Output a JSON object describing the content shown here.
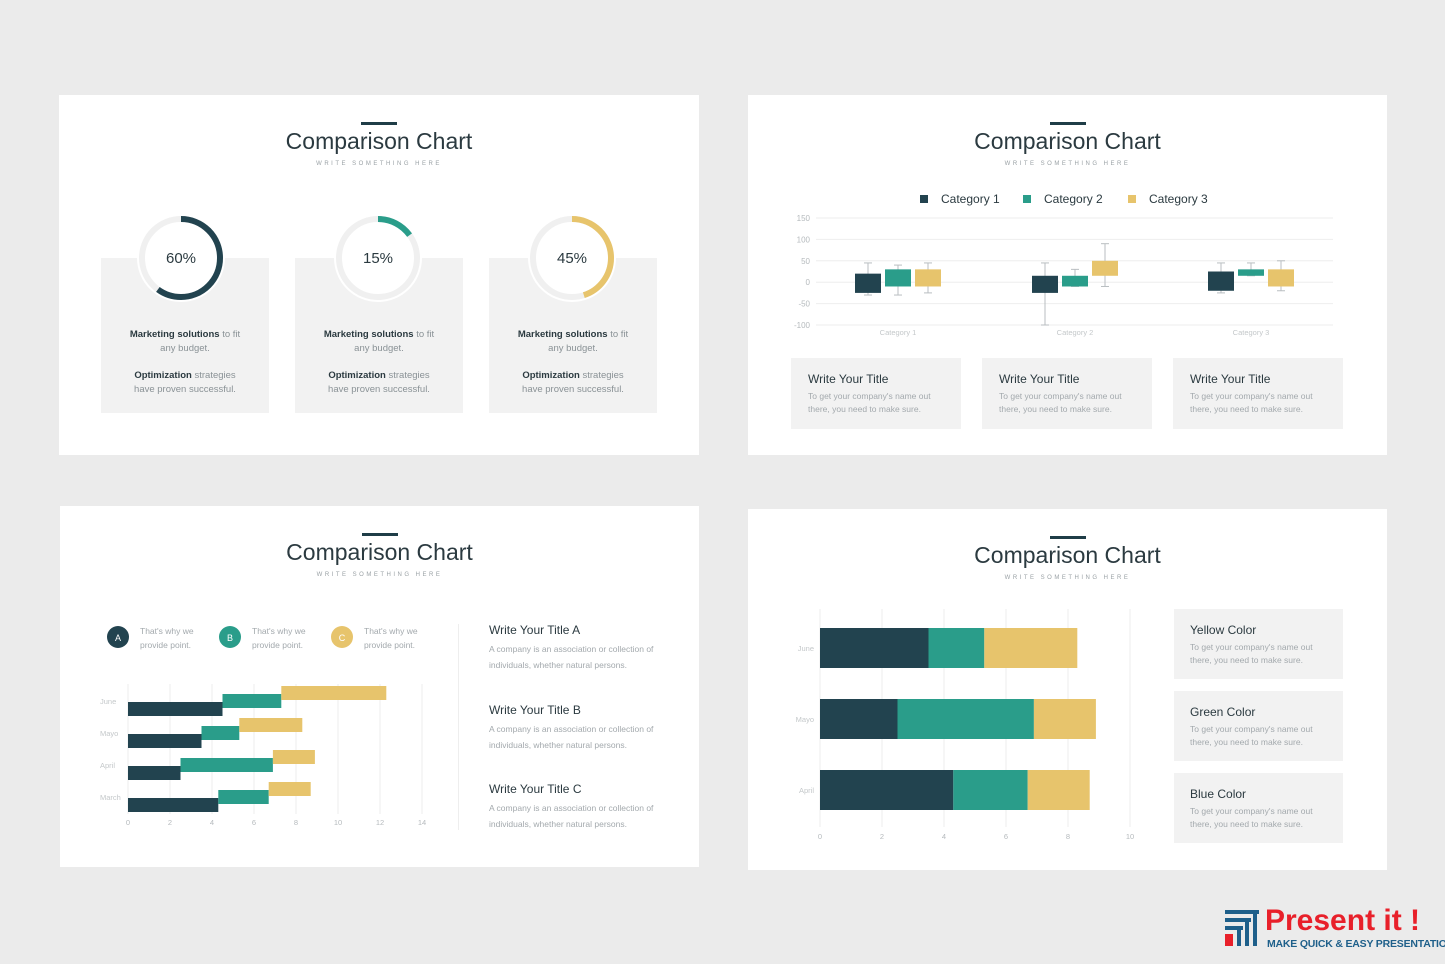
{
  "colors": {
    "navy": "#22434f",
    "teal": "#2a9d8a",
    "yellow": "#e7c46c",
    "track": "#f0f0f0",
    "grid": "#eeeeee",
    "tick": "#b5babd"
  },
  "slides": [
    {
      "title": "Comparison Chart",
      "subtitle": "WRITE SOMETHING HERE",
      "cards": [
        {
          "percent_label": "60%",
          "bold1": "Marketing solutions",
          "rest1a": " to fit",
          "rest1b": "any budget.",
          "bold2": "Optimization",
          "rest2a": " strategies",
          "rest2b": "have proven successful."
        },
        {
          "percent_label": "15%",
          "bold1": "Marketing solutions",
          "rest1a": " to fit",
          "rest1b": "any budget.",
          "bold2": "Optimization",
          "rest2a": " strategies",
          "rest2b": "have proven successful."
        },
        {
          "percent_label": "45%",
          "bold1": "Marketing solutions",
          "rest1a": " to fit",
          "rest1b": "any budget.",
          "bold2": "Optimization",
          "rest2a": " strategies",
          "rest2b": "have proven successful."
        }
      ]
    },
    {
      "title": "Comparison Chart",
      "subtitle": "WRITE SOMETHING HERE",
      "legend": [
        "Category 1",
        "Category 2",
        "Category 3"
      ],
      "cards": [
        {
          "title": "Write Your Title",
          "desc": "To get your company's name out there, you need to make sure."
        },
        {
          "title": "Write Your Title",
          "desc": "To get your company's name out there, you need to make sure."
        },
        {
          "title": "Write Your Title",
          "desc": "To get your company's name out there, you need to make sure."
        }
      ]
    },
    {
      "title": "Comparison Chart",
      "subtitle": "WRITE SOMETHING HERE",
      "badges": [
        {
          "letter": "A",
          "text1": "That's why we",
          "text2": "provide point."
        },
        {
          "letter": "B",
          "text1": "That's why we",
          "text2": "provide point."
        },
        {
          "letter": "C",
          "text1": "That's why we",
          "text2": "provide point."
        }
      ],
      "side": [
        {
          "title": "Write Your Title A",
          "desc": "A company is an association or collection of individuals, whether natural persons."
        },
        {
          "title": "Write Your Title B",
          "desc": "A company is an association or collection of individuals, whether natural persons."
        },
        {
          "title": "Write Your Title C",
          "desc": "A company is an association or collection of individuals, whether natural persons."
        }
      ]
    },
    {
      "title": "Comparison Chart",
      "subtitle": "WRITE SOMETHING HERE",
      "cards": [
        {
          "title": "Yellow Color",
          "desc": "To get your company's name out there, you need to make sure."
        },
        {
          "title": "Green Color",
          "desc": "To get your company's name out there, you need to make sure."
        },
        {
          "title": "Blue Color",
          "desc": "To get your company's name out there, you need to make sure."
        }
      ]
    }
  ],
  "chart_data": [
    {
      "type": "pie",
      "subtype": "donut",
      "values": [
        60,
        15,
        45
      ],
      "labels": [
        "60%",
        "15%",
        "45%"
      ],
      "colors": [
        "#22434f",
        "#2a9d8a",
        "#e7c46c"
      ]
    },
    {
      "type": "bar",
      "subtype": "floating-box-with-whiskers",
      "categories": [
        "Category 1",
        "Category 2",
        "Category 3"
      ],
      "yticks": [
        "150",
        "100",
        "50",
        "0",
        "-50",
        "-100"
      ],
      "ylim": [
        -100,
        150
      ],
      "legend_position": "top",
      "series": [
        {
          "name": "Category 1",
          "low": [
            -25,
            -25,
            -20
          ],
          "high": [
            20,
            15,
            25
          ],
          "whisker_low": [
            -30,
            -100,
            -25
          ],
          "whisker_high": [
            45,
            45,
            45
          ]
        },
        {
          "name": "Category 2",
          "low": [
            -10,
            -10,
            15
          ],
          "high": [
            30,
            15,
            30
          ],
          "whisker_low": [
            -30,
            -10,
            15
          ],
          "whisker_high": [
            40,
            30,
            45
          ]
        },
        {
          "name": "Category 3",
          "low": [
            -10,
            15,
            -10
          ],
          "high": [
            30,
            50,
            30
          ],
          "whisker_low": [
            -25,
            -10,
            -20
          ],
          "whisker_high": [
            45,
            90,
            50
          ]
        }
      ]
    },
    {
      "type": "bar",
      "subtype": "horizontal-gantt",
      "categories": [
        "June",
        "Mayo",
        "April",
        "March"
      ],
      "xticks": [
        "0",
        "2",
        "4",
        "6",
        "8",
        "10",
        "12",
        "14"
      ],
      "xlim": [
        0,
        14
      ],
      "series": [
        {
          "name": "A",
          "start": [
            0,
            0,
            0,
            0
          ],
          "end": [
            4.5,
            3.5,
            2.5,
            4.3
          ]
        },
        {
          "name": "B",
          "start": [
            4.5,
            3.5,
            2.5,
            4.3
          ],
          "end": [
            7.3,
            5.3,
            6.9,
            6.7
          ]
        },
        {
          "name": "C",
          "start": [
            7.3,
            5.3,
            6.9,
            6.7
          ],
          "end": [
            12.3,
            8.3,
            8.9,
            8.7
          ]
        }
      ]
    },
    {
      "type": "bar",
      "subtype": "horizontal-stacked",
      "categories": [
        "June",
        "Mayo",
        "April"
      ],
      "xticks": [
        "0",
        "2",
        "4",
        "6",
        "8",
        "10"
      ],
      "xlim": [
        0,
        10
      ],
      "series": [
        {
          "name": "Blue",
          "values": [
            3.5,
            2.5,
            4.3
          ]
        },
        {
          "name": "Green",
          "values": [
            1.8,
            4.4,
            2.4
          ]
        },
        {
          "name": "Yellow",
          "values": [
            3.0,
            2.0,
            2.0
          ]
        }
      ]
    }
  ],
  "logo": {
    "brand": "Present it !",
    "tagline": "MAKE QUICK & EASY PRESENTATIONS"
  }
}
